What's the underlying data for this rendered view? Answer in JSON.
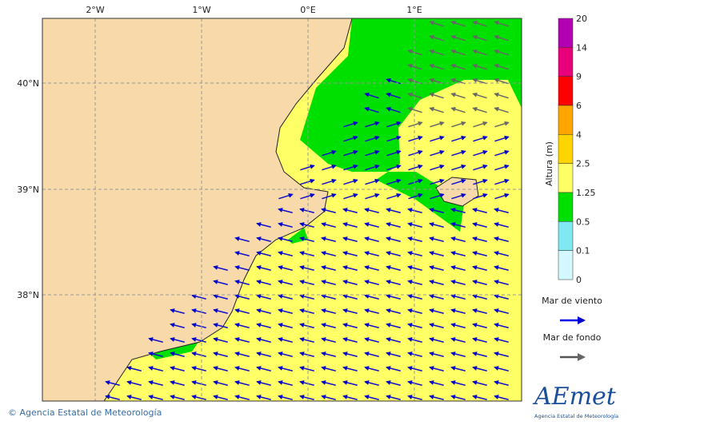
{
  "map": {
    "lon_labels": [
      "2°W",
      "1°W",
      "0°E",
      "1°E"
    ],
    "lat_labels": [
      "40°N",
      "39°N",
      "38°N"
    ],
    "colorbar": {
      "title": "Altura (m)",
      "levels": [
        20,
        14,
        9,
        6,
        4,
        2.5,
        1.25,
        0.5,
        0.1,
        0
      ],
      "colors": [
        "#b000b0",
        "#e8007a",
        "#ff0000",
        "#ffa500",
        "#ffd400",
        "#ffff66",
        "#00e000",
        "#80e8f0",
        "#d4f8ff"
      ]
    },
    "legend": [
      {
        "label": "Mar de viento",
        "color": "#0000ee"
      },
      {
        "label": "Mar de fondo",
        "color": "#555555"
      }
    ],
    "copyright": "© Agencia Estatal de Meteorología",
    "logo": {
      "name": "AEmet",
      "subtitle": "Agencia Estatal de Meteorología"
    }
  }
}
